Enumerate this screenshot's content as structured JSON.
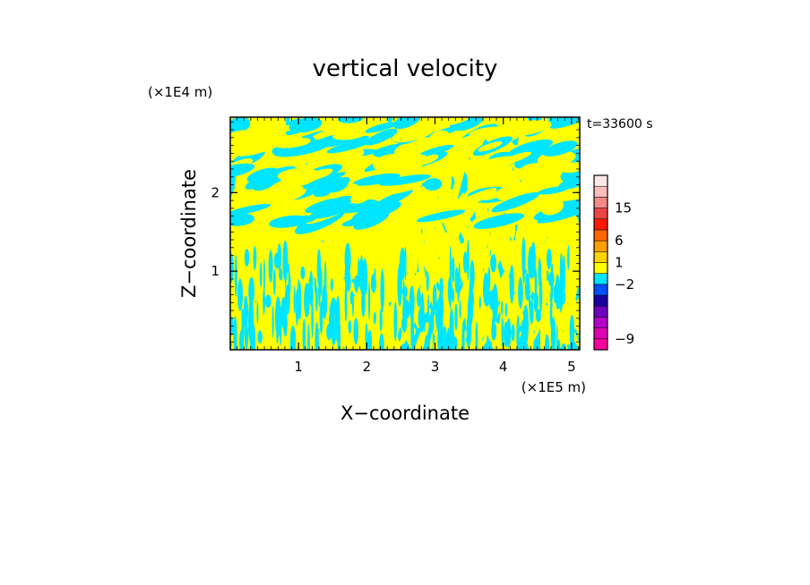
{
  "chart_data": {
    "type": "heatmap",
    "title": "vertical velocity",
    "xlabel": "X−coordinate",
    "ylabel": "Z−coordinate",
    "x_unit": "(×1E5 m)",
    "y_unit": "(×1E4 m)",
    "time_label": "t=33600 s",
    "xlim": [
      0,
      5.12
    ],
    "ylim": [
      0,
      2.96
    ],
    "x_ticks": [
      {
        "value": 1,
        "label": "1"
      },
      {
        "value": 2,
        "label": "2"
      },
      {
        "value": 3,
        "label": "3"
      },
      {
        "value": 4,
        "label": "4"
      },
      {
        "value": 5,
        "label": "5"
      }
    ],
    "y_ticks": [
      {
        "value": 1,
        "label": "1"
      },
      {
        "value": 2,
        "label": "2"
      }
    ],
    "dominant_colors": {
      "positive": "#ffff00",
      "negative": "#00e5ff"
    },
    "colorbar": {
      "levels": [
        {
          "color": "#ff00a0"
        },
        {
          "color": "#e000b8"
        },
        {
          "color": "#b400c8"
        },
        {
          "color": "#7000c0"
        },
        {
          "color": "#1a00a0"
        },
        {
          "color": "#0050ff"
        },
        {
          "color": "#00e5ff"
        },
        {
          "color": "#ffff00"
        },
        {
          "color": "#ffd400"
        },
        {
          "color": "#ffa000"
        },
        {
          "color": "#ff6600"
        },
        {
          "color": "#ff1a00"
        },
        {
          "color": "#ee4444"
        },
        {
          "color": "#f78888"
        },
        {
          "color": "#fbbcbc"
        },
        {
          "color": "#fde6e6"
        }
      ],
      "labels": [
        {
          "text": "15",
          "at_boundary": 13
        },
        {
          "text": "6",
          "at_boundary": 10
        },
        {
          "text": "1",
          "at_boundary": 8
        },
        {
          "text": "−2",
          "at_boundary": 6
        },
        {
          "text": "−9",
          "at_boundary": 1
        }
      ]
    }
  }
}
